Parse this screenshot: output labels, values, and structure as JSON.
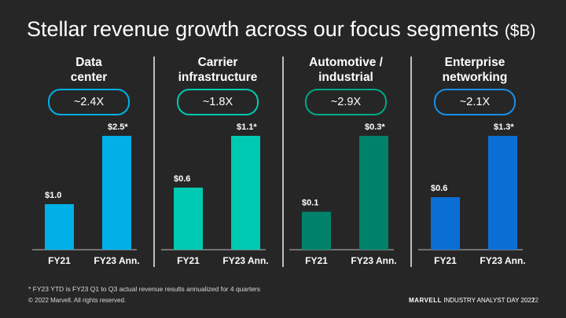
{
  "slide": {
    "title": "Stellar revenue growth across our focus segments",
    "title_unit": "($B)",
    "footnote": "* FY23 YTD is FY23 Q1 to Q3 actual revenue results annualized for 4 quarters",
    "copyright": "© 2022 Marvell. All rights reserved.",
    "brand_name": "MARVELL",
    "event_name": "INDUSTRY ANALYST DAY 2022",
    "page_number": "12"
  },
  "segments": [
    {
      "name_line1": "Data",
      "name_line2": "center",
      "growth": "~2.4X",
      "color": "#00b0e6",
      "pill_color": "#00b0e6"
    },
    {
      "name_line1": "Carrier",
      "name_line2": "infrastructure",
      "growth": "~1.8X",
      "color": "#00c9b1",
      "pill_color": "#00c9b1"
    },
    {
      "name_line1": "Automotive /",
      "name_line2": "industrial",
      "growth": "~2.9X",
      "color": "#00826a",
      "pill_color": "#00a887"
    },
    {
      "name_line1": "Enterprise",
      "name_line2": "networking",
      "growth": "~2.1X",
      "color": "#0a6fd4",
      "pill_color": "#1a8fe8"
    }
  ],
  "chart_data": [
    {
      "type": "bar",
      "title": "Data center",
      "categories": [
        "FY21",
        "FY23 Ann."
      ],
      "values": [
        1.0,
        2.5
      ],
      "data_labels": [
        "$1.0",
        "$2.5*"
      ]
    },
    {
      "type": "bar",
      "title": "Carrier infrastructure",
      "categories": [
        "FY21",
        "FY23 Ann."
      ],
      "values": [
        0.6,
        1.1
      ],
      "data_labels": [
        "$0.6",
        "$1.1*"
      ]
    },
    {
      "type": "bar",
      "title": "Automotive / industrial",
      "categories": [
        "FY21",
        "FY23 Ann."
      ],
      "values": [
        0.1,
        0.3
      ],
      "data_labels": [
        "$0.1",
        "$0.3*"
      ]
    },
    {
      "type": "bar",
      "title": "Enterprise networking",
      "categories": [
        "FY21",
        "FY23 Ann."
      ],
      "values": [
        0.6,
        1.3
      ],
      "data_labels": [
        "$0.6",
        "$1.3*"
      ]
    }
  ]
}
